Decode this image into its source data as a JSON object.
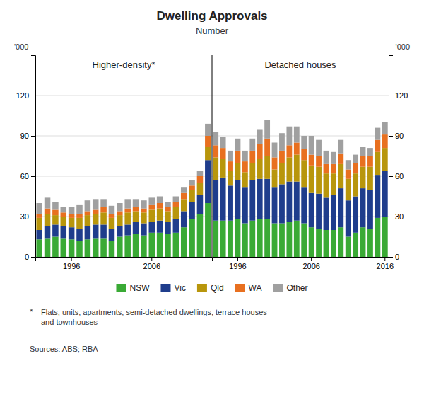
{
  "title": "Dwelling Approvals",
  "subtitle": "Number",
  "annotations": [
    "*",
    "Flats, units, apartments, semi-detached dwellings, terrace houses\nand townhouses",
    "Sources: ABS; RBA"
  ],
  "chart_data": [
    {
      "type": "bar",
      "stacked": true,
      "grid": true,
      "legend": "bottom",
      "title": "Higher-density*",
      "ylabel": "'000",
      "categories": [
        null,
        null,
        null,
        null,
        "1996",
        null,
        null,
        null,
        null,
        null,
        null,
        null,
        null,
        null,
        "2006",
        null,
        null,
        null,
        null,
        null,
        null,
        null
      ],
      "ylim": [
        0,
        150
      ],
      "yticks": [
        0,
        30,
        60,
        90,
        120
      ],
      "series": [
        {
          "name": "NSW",
          "color": "#3aaa35",
          "values": [
            13,
            14,
            15,
            14,
            13,
            12,
            13,
            14,
            14,
            12,
            15,
            16,
            17,
            16,
            18,
            18,
            17,
            18,
            22,
            28,
            32,
            40
          ]
        },
        {
          "name": "Vic",
          "color": "#1f3d8c",
          "values": [
            7,
            9,
            9,
            9,
            9,
            9,
            10,
            10,
            10,
            9,
            8,
            8,
            9,
            9,
            8,
            9,
            9,
            10,
            12,
            13,
            14,
            32
          ]
        },
        {
          "name": "Qld",
          "color": "#b8960c",
          "values": [
            9,
            9,
            7,
            7,
            7,
            8,
            8,
            8,
            9,
            8,
            8,
            9,
            8,
            8,
            9,
            9,
            8,
            9,
            9,
            9,
            9,
            10
          ]
        },
        {
          "name": "WA",
          "color": "#e87020",
          "values": [
            3,
            4,
            4,
            3,
            3,
            3,
            3,
            3,
            4,
            3,
            3,
            3,
            3,
            3,
            4,
            4,
            3,
            4,
            5,
            3,
            5,
            8
          ]
        },
        {
          "name": "Other",
          "color": "#a0a0a0",
          "values": [
            8,
            8,
            6,
            4,
            5,
            7,
            8,
            8,
            6,
            6,
            6,
            7,
            6,
            6,
            5,
            5,
            4,
            4,
            4,
            4,
            4,
            9
          ]
        }
      ]
    },
    {
      "type": "bar",
      "stacked": true,
      "grid": true,
      "title": "Detached houses",
      "ylabel": "'000",
      "categories": [
        null,
        null,
        null,
        "1996",
        null,
        null,
        null,
        null,
        null,
        null,
        null,
        null,
        null,
        "2006",
        null,
        null,
        null,
        null,
        null,
        null,
        null,
        null,
        null,
        "2016"
      ],
      "ylim": [
        0,
        150
      ],
      "yticks": [
        0,
        30,
        60,
        90,
        120
      ],
      "series": [
        {
          "name": "NSW",
          "color": "#3aaa35",
          "values": [
            27,
            27,
            27,
            28,
            25,
            27,
            28,
            28,
            25,
            25,
            26,
            27,
            25,
            22,
            21,
            20,
            20,
            22,
            15,
            18,
            22,
            21,
            29,
            30
          ]
        },
        {
          "name": "Vic",
          "color": "#1f3d8c",
          "values": [
            30,
            32,
            26,
            29,
            27,
            30,
            30,
            30,
            27,
            29,
            30,
            29,
            27,
            26,
            26,
            24,
            26,
            29,
            27,
            27,
            29,
            29,
            32,
            34
          ]
        },
        {
          "name": "Qld",
          "color": "#b8960c",
          "values": [
            17,
            14,
            11,
            13,
            11,
            13,
            15,
            17,
            13,
            16,
            18,
            20,
            20,
            20,
            20,
            18,
            16,
            18,
            16,
            17,
            16,
            17,
            17,
            17
          ]
        },
        {
          "name": "WA",
          "color": "#e87020",
          "values": [
            9,
            8,
            7,
            9,
            8,
            9,
            11,
            13,
            9,
            9,
            9,
            9,
            8,
            8,
            8,
            7,
            7,
            8,
            7,
            8,
            8,
            8,
            9,
            10
          ]
        },
        {
          "name": "Other",
          "color": "#a0a0a0",
          "values": [
            10,
            8,
            8,
            9,
            8,
            9,
            11,
            14,
            11,
            13,
            14,
            12,
            10,
            14,
            12,
            10,
            9,
            10,
            7,
            6,
            7,
            6,
            9,
            9
          ]
        }
      ]
    }
  ]
}
